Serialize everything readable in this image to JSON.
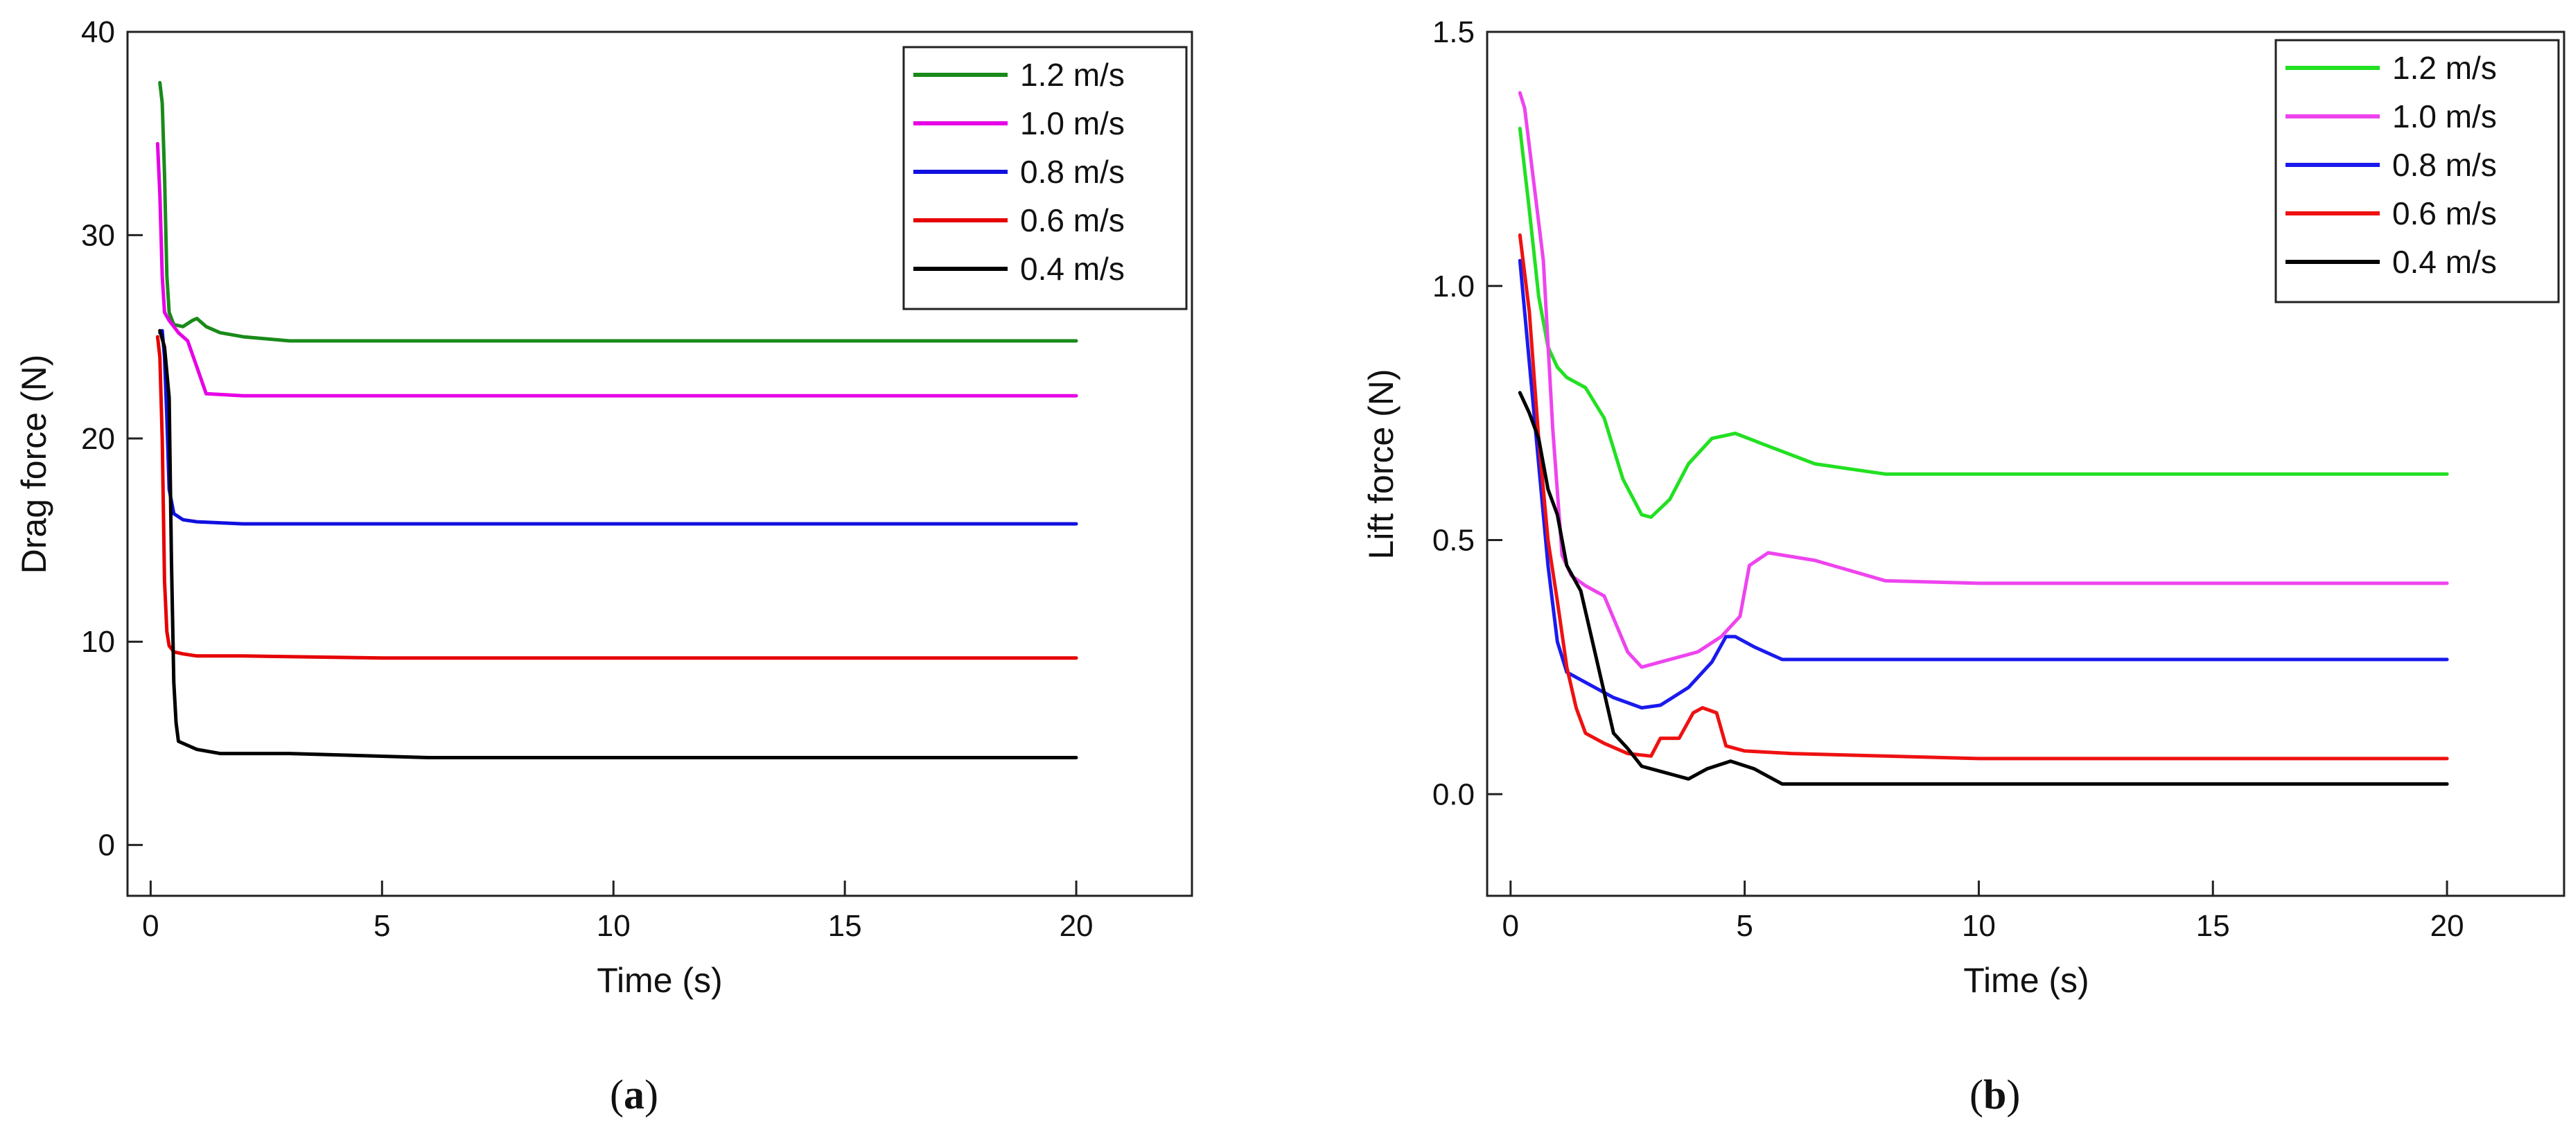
{
  "chart_data": [
    {
      "type": "line",
      "panel": "a",
      "panel_label": "a",
      "xlabel": "Time (s)",
      "ylabel": "Drag force (N)",
      "xlim": [
        -0.5,
        22.5
      ],
      "ylim": [
        -2.5,
        40
      ],
      "xticks": [
        0,
        5,
        10,
        15,
        20
      ],
      "yticks": [
        0,
        10,
        20,
        30,
        40
      ],
      "legend_position": "top-right",
      "series": [
        {
          "name": "1.2 m/s",
          "color": "#1a8a1a",
          "x": [
            0.2,
            0.25,
            0.3,
            0.35,
            0.4,
            0.5,
            0.7,
            0.9,
            1.0,
            1.2,
            1.5,
            2,
            3,
            5,
            10,
            20
          ],
          "y": [
            37.5,
            36.5,
            33,
            28,
            26.2,
            25.6,
            25.5,
            25.8,
            25.9,
            25.5,
            25.2,
            25.0,
            24.8,
            24.8,
            24.8,
            24.8
          ]
        },
        {
          "name": "1.0 m/s",
          "color": "#e600e6",
          "x": [
            0.15,
            0.2,
            0.25,
            0.3,
            0.4,
            0.6,
            0.8,
            1.0,
            1.2,
            2,
            3,
            5,
            10,
            20
          ],
          "y": [
            34.5,
            32,
            28,
            26.2,
            25.8,
            25.2,
            24.8,
            23.5,
            22.2,
            22.1,
            22.1,
            22.1,
            22.1,
            22.1
          ]
        },
        {
          "name": "0.8 m/s",
          "color": "#1010e0",
          "x": [
            0.2,
            0.25,
            0.3,
            0.35,
            0.4,
            0.5,
            0.7,
            1,
            2,
            5,
            10,
            20
          ],
          "y": [
            25.2,
            25.3,
            24,
            21,
            17.5,
            16.3,
            16.0,
            15.9,
            15.8,
            15.8,
            15.8,
            15.8
          ]
        },
        {
          "name": "0.6 m/s",
          "color": "#e60000",
          "x": [
            0.15,
            0.2,
            0.25,
            0.3,
            0.35,
            0.4,
            0.5,
            0.7,
            1,
            2,
            5,
            10,
            20
          ],
          "y": [
            25.0,
            24.0,
            20,
            13,
            10.5,
            9.8,
            9.5,
            9.4,
            9.3,
            9.3,
            9.2,
            9.2,
            9.2
          ]
        },
        {
          "name": "0.4 m/s",
          "color": "#000000",
          "x": [
            0.2,
            0.3,
            0.4,
            0.45,
            0.5,
            0.55,
            0.6,
            0.8,
            1.0,
            1.5,
            3,
            6,
            10,
            20
          ],
          "y": [
            25.3,
            24.5,
            22,
            14,
            8,
            6,
            5.1,
            4.9,
            4.7,
            4.5,
            4.5,
            4.3,
            4.3,
            4.3
          ]
        }
      ]
    },
    {
      "type": "line",
      "panel": "b",
      "panel_label": "b",
      "xlabel": "Time (s)",
      "ylabel": "Lift force (N)",
      "xlim": [
        -0.5,
        22.5
      ],
      "ylim": [
        -0.2,
        1.5
      ],
      "xticks": [
        0,
        5,
        10,
        15,
        20
      ],
      "yticks": [
        0.0,
        0.5,
        1.0,
        1.5
      ],
      "ytick_labels": [
        "0.0",
        "0.5",
        "1.0",
        "1.5"
      ],
      "legend_position": "top-right",
      "series": [
        {
          "name": "1.2 m/s",
          "color": "#22e022",
          "x": [
            0.2,
            0.4,
            0.6,
            0.8,
            1.0,
            1.2,
            1.6,
            2.0,
            2.4,
            2.8,
            3.0,
            3.4,
            3.8,
            4.3,
            4.8,
            5.5,
            6.5,
            8,
            10,
            15,
            20
          ],
          "y": [
            1.31,
            1.15,
            0.98,
            0.88,
            0.84,
            0.82,
            0.8,
            0.74,
            0.62,
            0.55,
            0.545,
            0.58,
            0.65,
            0.7,
            0.71,
            0.685,
            0.65,
            0.63,
            0.63,
            0.63,
            0.63
          ]
        },
        {
          "name": "1.0 m/s",
          "color": "#ee44ee",
          "x": [
            0.2,
            0.3,
            0.5,
            0.7,
            0.9,
            1.1,
            1.3,
            1.6,
            2.0,
            2.5,
            2.8,
            3.2,
            4.0,
            4.5,
            4.9,
            5.1,
            5.5,
            6.5,
            8,
            10,
            15,
            20
          ],
          "y": [
            1.38,
            1.35,
            1.2,
            1.05,
            0.72,
            0.47,
            0.43,
            0.41,
            0.39,
            0.28,
            0.25,
            0.26,
            0.28,
            0.31,
            0.35,
            0.45,
            0.475,
            0.46,
            0.42,
            0.415,
            0.415,
            0.415
          ]
        },
        {
          "name": "0.8 m/s",
          "color": "#1a1aee",
          "x": [
            0.2,
            0.4,
            0.6,
            0.8,
            1.0,
            1.2,
            1.6,
            2.2,
            2.8,
            3.2,
            3.8,
            4.3,
            4.6,
            4.8,
            5.2,
            5.8,
            8,
            10,
            15,
            20
          ],
          "y": [
            1.05,
            0.85,
            0.65,
            0.45,
            0.3,
            0.24,
            0.22,
            0.19,
            0.17,
            0.175,
            0.21,
            0.26,
            0.31,
            0.31,
            0.29,
            0.265,
            0.265,
            0.265,
            0.265,
            0.265
          ]
        },
        {
          "name": "0.6 m/s",
          "color": "#ee1111",
          "x": [
            0.2,
            0.4,
            0.6,
            0.8,
            1.0,
            1.2,
            1.4,
            1.6,
            2.0,
            2.5,
            3.0,
            3.2,
            3.6,
            3.9,
            4.1,
            4.4,
            4.6,
            5.0,
            6,
            8,
            10,
            15,
            20
          ],
          "y": [
            1.1,
            0.95,
            0.7,
            0.5,
            0.38,
            0.25,
            0.17,
            0.12,
            0.1,
            0.08,
            0.075,
            0.11,
            0.11,
            0.16,
            0.17,
            0.16,
            0.095,
            0.085,
            0.08,
            0.075,
            0.07,
            0.07,
            0.07
          ]
        },
        {
          "name": "0.4 m/s",
          "color": "#000000",
          "x": [
            0.2,
            0.4,
            0.6,
            0.8,
            1.0,
            1.2,
            1.5,
            1.8,
            2.0,
            2.2,
            2.5,
            2.8,
            3.2,
            3.8,
            4.2,
            4.7,
            5.2,
            5.8,
            8,
            10,
            15,
            20
          ],
          "y": [
            0.79,
            0.75,
            0.7,
            0.6,
            0.55,
            0.45,
            0.4,
            0.28,
            0.2,
            0.12,
            0.09,
            0.055,
            0.045,
            0.03,
            0.05,
            0.065,
            0.05,
            0.02,
            0.02,
            0.02,
            0.02,
            0.02
          ]
        }
      ]
    }
  ]
}
